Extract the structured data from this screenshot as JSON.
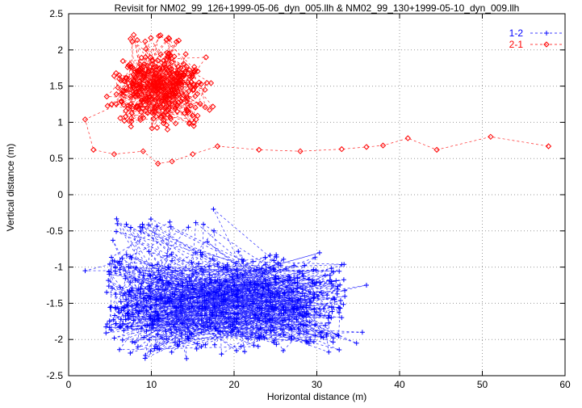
{
  "chart_data": {
    "type": "scatter",
    "title": "Revisit for NM02_99_126+1999-05-06_dyn_005.llh & NM02_99_130+1999-05-10_dyn_009.llh",
    "xlabel": "Horizontal distance (m)",
    "ylabel": "Vertical distance (m)",
    "xlim": [
      0,
      60
    ],
    "ylim": [
      -2.5,
      2.5
    ],
    "xticks": [
      0,
      10,
      20,
      30,
      40,
      50,
      60
    ],
    "yticks": [
      -2.5,
      -2,
      -1.5,
      -1,
      -0.5,
      0,
      0.5,
      1,
      1.5,
      2,
      2.5
    ],
    "grid": true,
    "grid_color": "#9a9a9a",
    "axis_color": "#000000",
    "background": "#ffffff",
    "seed": 1337,
    "legend": {
      "position": "top-right",
      "entries": [
        {
          "label": "1-2",
          "color": "#0000ff",
          "marker": "plus"
        },
        {
          "label": "2-1",
          "color": "#ff0000",
          "marker": "diamond"
        }
      ]
    },
    "series": [
      {
        "name": "1-2",
        "color": "#0000ff",
        "marker": "plus",
        "linestyle": "dashed",
        "clusters": [
          {
            "count": 640,
            "xdist": "uniform",
            "x_min": 4.5,
            "x_max": 33.5,
            "ydist": "normal",
            "y_mean": -1.5,
            "y_sd": 0.36,
            "y_min": -2.28,
            "y_max": -0.78
          },
          {
            "count": 20,
            "xdist": "uniform",
            "x_min": 4.8,
            "x_max": 19.0,
            "ydist": "normal",
            "y_mean": -0.42,
            "y_sd": 0.13,
            "y_min": -0.68,
            "y_max": -0.18
          }
        ],
        "extra_points": [
          [
            2.0,
            -1.05
          ],
          [
            35.5,
            -1.9
          ],
          [
            36.0,
            -1.25
          ],
          [
            34.8,
            -2.05
          ],
          [
            17.5,
            -0.2
          ]
        ]
      },
      {
        "name": "2-1",
        "color": "#ff0000",
        "marker": "diamond",
        "linestyle": "dashed",
        "clusters": [
          {
            "count": 370,
            "xdist": "normal",
            "x_mean": 10.8,
            "x_sd": 2.9,
            "x_min": 4.6,
            "x_max": 17.5,
            "ydist": "normal",
            "y_mean": 1.45,
            "y_sd": 0.27,
            "y_min": 0.9,
            "y_max": 2.02
          },
          {
            "count": 13,
            "xdist": "uniform",
            "x_min": 6.5,
            "x_max": 14.0,
            "ydist": "uniform",
            "y_min": 2.1,
            "y_max": 2.23
          }
        ],
        "tail_points": [
          [
            2.0,
            1.04
          ],
          [
            3.0,
            0.62
          ],
          [
            5.5,
            0.56
          ],
          [
            9.0,
            0.6
          ],
          [
            10.8,
            0.43
          ],
          [
            12.5,
            0.46
          ],
          [
            15.0,
            0.56
          ],
          [
            18.0,
            0.67
          ],
          [
            23.0,
            0.62
          ],
          [
            28.0,
            0.6
          ],
          [
            33.0,
            0.63
          ],
          [
            36.0,
            0.66
          ],
          [
            38.0,
            0.68
          ],
          [
            41.0,
            0.78
          ],
          [
            44.5,
            0.62
          ],
          [
            51.0,
            0.8
          ],
          [
            58.0,
            0.67
          ]
        ]
      }
    ]
  }
}
